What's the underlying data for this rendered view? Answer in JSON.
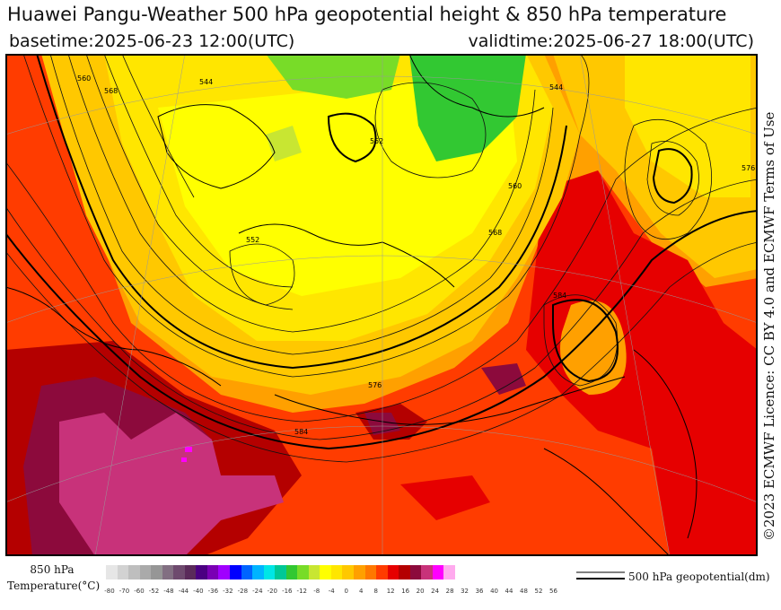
{
  "header": {
    "title": "Huawei Pangu-Weather 500 hPa geopotential height & 850 hPa temperature",
    "basetime": "basetime:2025-06-23 12:00(UTC)",
    "validtime": "validtime:2025-06-27 18:00(UTC)"
  },
  "licence": "©2023 ECMWF Licence: CC BY 4.0 and ECMWF Terms of Use",
  "legend": {
    "temperature_title": "850 hPa Temperature(°C)",
    "temperature_ticks": [
      "-80",
      "-70",
      "-60",
      "-52",
      "-48",
      "-44",
      "-40",
      "-36",
      "-32",
      "-28",
      "-24",
      "-20",
      "-16",
      "-12",
      "-8",
      "-4",
      "0",
      "4",
      "8",
      "12",
      "16",
      "20",
      "24",
      "28",
      "32",
      "36",
      "40",
      "44",
      "48",
      "52",
      "56"
    ],
    "temperature_colors": [
      "#e6e6e6",
      "#d2d2d2",
      "#bebebe",
      "#aaaaaa",
      "#969696",
      "#826f82",
      "#6e4a6e",
      "#5a2a5a",
      "#4b0082",
      "#7a00b4",
      "#a000ff",
      "#0000ff",
      "#0064ff",
      "#00b4ff",
      "#00e6e6",
      "#00c896",
      "#32c832",
      "#78dc28",
      "#c8e632",
      "#ffff00",
      "#ffe600",
      "#ffc800",
      "#ffa000",
      "#ff7800",
      "#ff3c00",
      "#e60000",
      "#b40000",
      "#8c0a3c",
      "#c8327a",
      "#ff00ff",
      "#ffaaee"
    ],
    "geopotential_label": "500 hPa geopotential(dm)"
  },
  "map": {
    "contour_labels": [
      "544",
      "552",
      "560",
      "568",
      "576",
      "584",
      "552",
      "560",
      "568",
      "576",
      "584",
      "544"
    ]
  }
}
